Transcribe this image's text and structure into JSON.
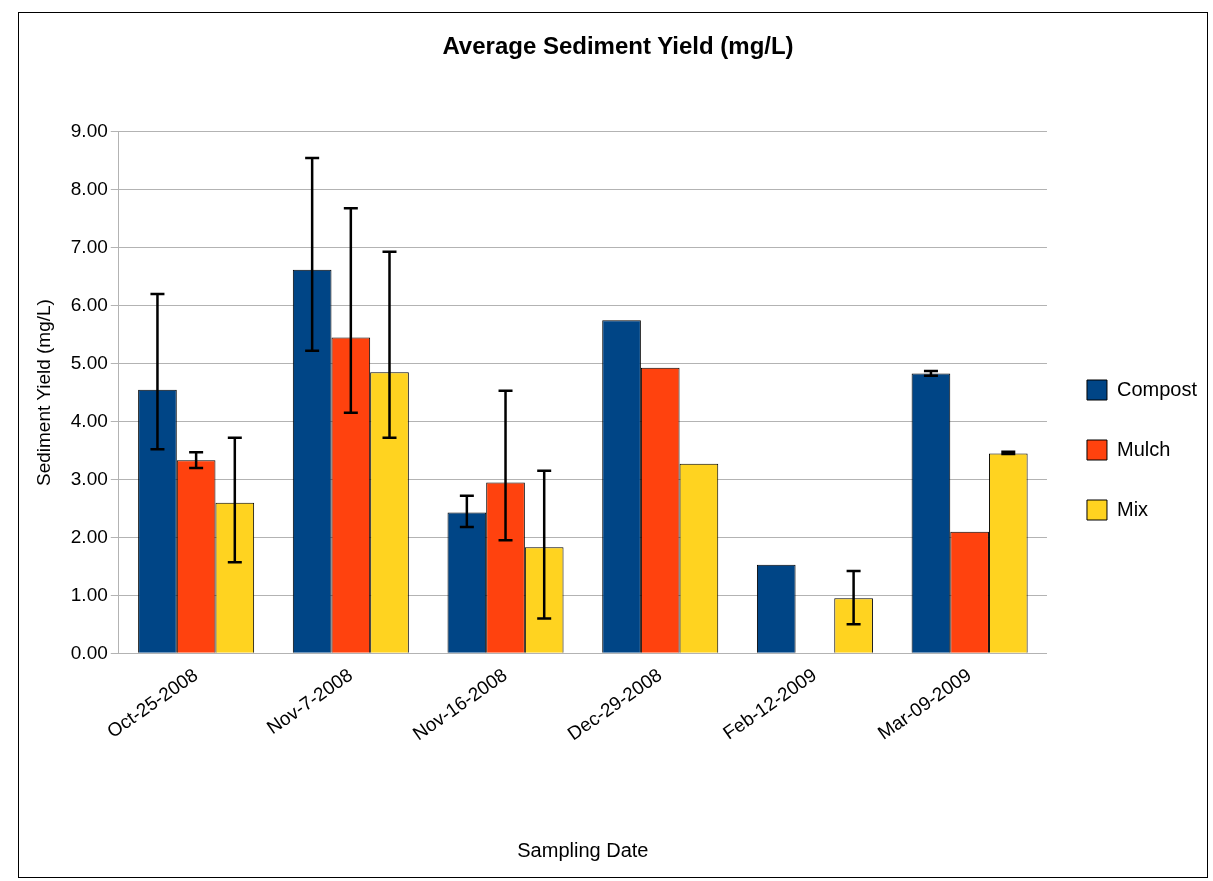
{
  "chart_data": {
    "type": "bar",
    "title": "Average Sediment Yield (mg/L)",
    "xlabel": "Sampling Date",
    "ylabel": "Sediment Yield (mg/L)",
    "categories": [
      "Oct-25-2008",
      "Nov-7-2008",
      "Nov-16-2008",
      "Dec-29-2008",
      "Feb-12-2009",
      "Mar-09-2009"
    ],
    "series": [
      {
        "name": "Compost",
        "color": "#004586",
        "values": [
          4.55,
          6.62,
          2.43,
          5.75,
          1.53,
          4.83
        ],
        "errors": [
          [
            3.52,
            6.2
          ],
          [
            5.22,
            8.55
          ],
          [
            2.18,
            2.72
          ],
          null,
          null,
          [
            4.79,
            4.87
          ]
        ]
      },
      {
        "name": "Mulch",
        "color": "#ff420e",
        "values": [
          3.33,
          5.45,
          2.95,
          4.93,
          null,
          2.1
        ],
        "errors": [
          [
            3.2,
            3.47
          ],
          [
            4.15,
            7.68
          ],
          [
            1.95,
            4.53
          ],
          null,
          null,
          null
        ]
      },
      {
        "name": "Mix",
        "color": "#ffd320",
        "values": [
          2.6,
          4.85,
          1.83,
          3.27,
          0.95,
          3.45
        ],
        "errors": [
          [
            1.57,
            3.72
          ],
          [
            3.72,
            6.93
          ],
          [
            0.6,
            3.15
          ],
          null,
          [
            0.5,
            1.42
          ],
          [
            3.44,
            3.48
          ]
        ]
      }
    ],
    "ylim": [
      0,
      9
    ],
    "yticks": [
      {
        "value": 0,
        "label": "0.00"
      },
      {
        "value": 1,
        "label": "1.00"
      },
      {
        "value": 2,
        "label": "2.00"
      },
      {
        "value": 3,
        "label": "3.00"
      },
      {
        "value": 4,
        "label": "4.00"
      },
      {
        "value": 5,
        "label": "5.00"
      },
      {
        "value": 6,
        "label": "6.00"
      },
      {
        "value": 7,
        "label": "7.00"
      },
      {
        "value": 8,
        "label": "8.00"
      },
      {
        "value": 9,
        "label": "9.00"
      }
    ],
    "grid": "y",
    "legend": "right"
  }
}
